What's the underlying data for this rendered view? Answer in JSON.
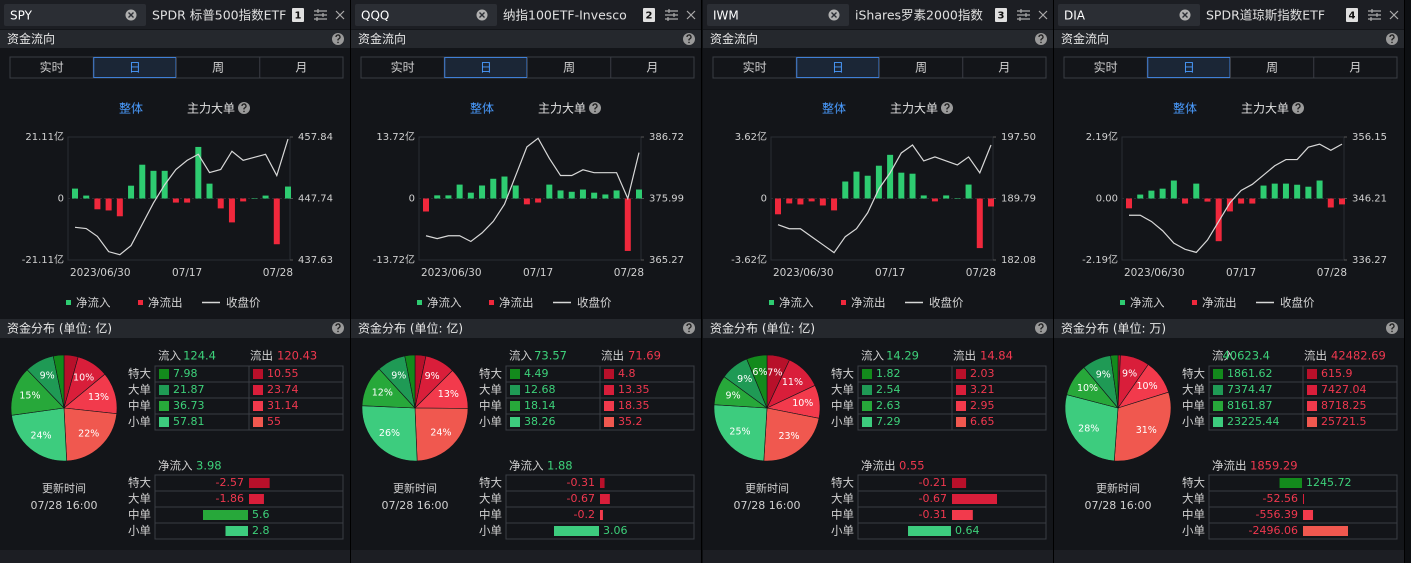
{
  "flow_title": "资金流向",
  "tabs": [
    "实时",
    "日",
    "周",
    "月"
  ],
  "active_tab": 1,
  "views": [
    "整体",
    "主力大单"
  ],
  "legend": [
    "净流入",
    "净流出",
    "收盘价"
  ],
  "row_labels": [
    "特大",
    "大单",
    "中单",
    "小单"
  ],
  "inflow_label": "流入",
  "outflow_label": "流出",
  "update_label": "更新时间",
  "categories": [
    "2023/06/30",
    null,
    null,
    null,
    null,
    null,
    null,
    null,
    null,
    null,
    "07/17",
    null,
    null,
    null,
    null,
    null,
    null,
    null,
    null,
    "07/28"
  ],
  "colors": {
    "up": "#2ecc71",
    "down": "#f0283c",
    "close": "#d8d8d8",
    "in": [
      "#138a1c",
      "#1f9a55",
      "#27a83a",
      "#3dcc7e"
    ],
    "out": [
      "#b8102a",
      "#d91e3a",
      "#f23a4c",
      "#f0584f"
    ]
  },
  "panels": [
    {
      "ticker": "SPY",
      "name": "SPDR 标普500指数ETF",
      "index": 1,
      "chart": {
        "type": "bar",
        "ylim": [
          -21.11,
          21.11
        ],
        "yticks": [
          {
            "value": 21.11,
            "label": "21.11亿"
          },
          0,
          {
            "value": -21.11,
            "label": "-21.11亿"
          }
        ],
        "y2lim": [
          437.63,
          457.84
        ],
        "y2ticks": [
          457.84,
          447.74,
          437.63
        ],
        "values": [
          3.4,
          1.0,
          -3.7,
          -4.1,
          -6.1,
          4.4,
          11.6,
          9.5,
          9.5,
          -1.4,
          -1.4,
          17.7,
          5.1,
          -3.4,
          -8.2,
          -1.0,
          0,
          1.0,
          -15.7,
          4.1
        ],
        "close": [
          443.0,
          442.8,
          441.5,
          439.0,
          438.5,
          440.0,
          443.5,
          447.0,
          450.0,
          452.5,
          454.0,
          455.0,
          452.0,
          452.5,
          455.5,
          454.0,
          454.5,
          455.0,
          451.5,
          457.5
        ]
      },
      "dist_title": "资金分布 (单位: 亿)",
      "inflow": 124.4,
      "outflow": 120.43,
      "rows": [
        {
          "in": 7.98,
          "out": 10.55,
          "in_pct": null,
          "out_pct": null
        },
        {
          "in": 21.87,
          "out": 23.74,
          "in_pct": "9%",
          "out_pct": "10%"
        },
        {
          "in": 36.73,
          "out": 31.14,
          "in_pct": "15%",
          "out_pct": "13%"
        },
        {
          "in": 57.81,
          "out": 55,
          "in_pct": "24%",
          "out_pct": "22%"
        }
      ],
      "net_label": "净流入",
      "net": 3.98,
      "net_color": "#3dd17a",
      "net_values": [
        -2.57,
        -1.86,
        5.6,
        2.8
      ],
      "update_time": "07/28 16:00"
    },
    {
      "ticker": "QQQ",
      "name": "纳指100ETF-Invesco",
      "index": 2,
      "chart": {
        "type": "bar",
        "ylim": [
          -13.72,
          13.72
        ],
        "yticks": [
          {
            "value": 13.72,
            "label": "13.72亿"
          },
          0,
          {
            "value": -13.72,
            "label": "-13.72亿"
          }
        ],
        "y2lim": [
          365.27,
          386.72
        ],
        "y2ticks": [
          386.72,
          375.99,
          365.27
        ],
        "values": [
          -2.9,
          0.7,
          0.7,
          3.1,
          1.3,
          2.9,
          4.4,
          4.9,
          2.9,
          -1.3,
          -0.9,
          3.1,
          1.8,
          1.5,
          2.0,
          1.3,
          0.9,
          1.8,
          -11.7,
          2.0
        ],
        "close": [
          369.5,
          369.0,
          369.5,
          369.5,
          368.5,
          370.0,
          372.0,
          375.0,
          380.0,
          385.0,
          386.5,
          383.0,
          380.0,
          380.0,
          381.0,
          380.5,
          380.5,
          380.5,
          376.0,
          384.0
        ]
      },
      "dist_title": "资金分布 (单位: 亿)",
      "inflow": 73.57,
      "outflow": 71.69,
      "rows": [
        {
          "in": 4.49,
          "out": 4.8,
          "in_pct": null,
          "out_pct": null
        },
        {
          "in": 12.68,
          "out": 13.35,
          "in_pct": "9%",
          "out_pct": "9%"
        },
        {
          "in": 18.14,
          "out": 18.35,
          "in_pct": "12%",
          "out_pct": "13%"
        },
        {
          "in": 38.26,
          "out": 35.2,
          "in_pct": "26%",
          "out_pct": "24%"
        }
      ],
      "net_label": "净流入",
      "net": 1.88,
      "net_color": "#3dd17a",
      "net_values": [
        -0.31,
        -0.67,
        -0.2,
        3.06
      ],
      "update_time": "07/28 16:00"
    },
    {
      "ticker": "IWM",
      "name": "iShares罗素2000指数",
      "index": 3,
      "chart": {
        "type": "bar",
        "ylim": [
          -3.62,
          3.62
        ],
        "yticks": [
          {
            "value": 3.62,
            "label": "3.62亿"
          },
          0,
          {
            "value": -3.62,
            "label": "-3.62亿"
          }
        ],
        "y2lim": [
          182.08,
          197.5
        ],
        "y2ticks": [
          {
            "value": 197.5,
            "label": "197.50"
          },
          189.79,
          182.08
        ],
        "values": [
          -0.93,
          -0.29,
          -0.35,
          -0.17,
          -0.41,
          -0.7,
          1.0,
          1.58,
          1.34,
          1.93,
          2.57,
          1.52,
          1.46,
          0.18,
          -0.17,
          0.18,
          0,
          0.82,
          -2.92,
          -0.47
        ],
        "close": [
          186.5,
          186.0,
          186.0,
          185.0,
          184.0,
          183.0,
          185.0,
          186.0,
          188.0,
          191.0,
          193.0,
          195.5,
          196.5,
          194.5,
          195.0,
          194.5,
          194.0,
          195.0,
          193.0,
          196.5
        ]
      },
      "dist_title": "资金分布 (单位: 亿)",
      "inflow": 14.29,
      "outflow": 14.84,
      "rows": [
        {
          "in": 1.82,
          "out": 2.03,
          "in_pct": "6%",
          "out_pct": "7%"
        },
        {
          "in": 2.54,
          "out": 3.21,
          "in_pct": "9%",
          "out_pct": "11%"
        },
        {
          "in": 2.63,
          "out": 2.95,
          "in_pct": "9%",
          "out_pct": "10%"
        },
        {
          "in": 7.29,
          "out": 6.65,
          "in_pct": "25%",
          "out_pct": "23%"
        }
      ],
      "net_label": "净流出",
      "net": 0.55,
      "net_color": "#f0384f",
      "net_values": [
        -0.21,
        -0.67,
        -0.31,
        0.64
      ],
      "update_time": "07/28 16:00"
    },
    {
      "ticker": "DIA",
      "name": "SPDR道琼斯指数ETF",
      "index": 4,
      "chart": {
        "type": "bar",
        "ylim": [
          -2.19,
          2.19
        ],
        "yticks": [
          {
            "value": 2.19,
            "label": "2.19亿"
          },
          {
            "value": 0,
            "label": "0.00"
          },
          {
            "value": -2.19,
            "label": "-2.19亿"
          }
        ],
        "y2lim": [
          336.27,
          356.15
        ],
        "y2ticks": [
          356.15,
          346.21,
          336.27
        ],
        "values": [
          -0.35,
          0.14,
          0.28,
          0.35,
          0.64,
          -0.18,
          0.53,
          -0.11,
          -1.52,
          -0.46,
          -0.18,
          -0.18,
          0.46,
          0.53,
          0.53,
          0.49,
          0.42,
          0.64,
          -0.32,
          -0.21
        ],
        "close": [
          343.5,
          343.5,
          342.5,
          341.0,
          339.0,
          338.0,
          337.5,
          339.5,
          342.5,
          345.5,
          347.5,
          348.5,
          350.0,
          351.5,
          352.5,
          352.5,
          354.5,
          355.0,
          354.0,
          355.0
        ]
      },
      "dist_title": "资金分布 (单位: 万)",
      "inflow": 40623.4,
      "outflow": 42482.69,
      "rows": [
        {
          "in": 1861.62,
          "out": 615.9,
          "in_pct": null,
          "out_pct": null
        },
        {
          "in": 7374.47,
          "out": 7427.04,
          "in_pct": "9%",
          "out_pct": "9%"
        },
        {
          "in": 8161.87,
          "out": 8718.25,
          "in_pct": "10%",
          "out_pct": "10%"
        },
        {
          "in": 23225.44,
          "out": 25721.5,
          "in_pct": "28%",
          "out_pct": "31%"
        }
      ],
      "net_label": "净流出",
      "net": 1859.29,
      "net_color": "#f0384f",
      "net_values": [
        1245.72,
        -52.56,
        -556.39,
        -2496.06
      ],
      "update_time": "07/28 16:00"
    }
  ]
}
